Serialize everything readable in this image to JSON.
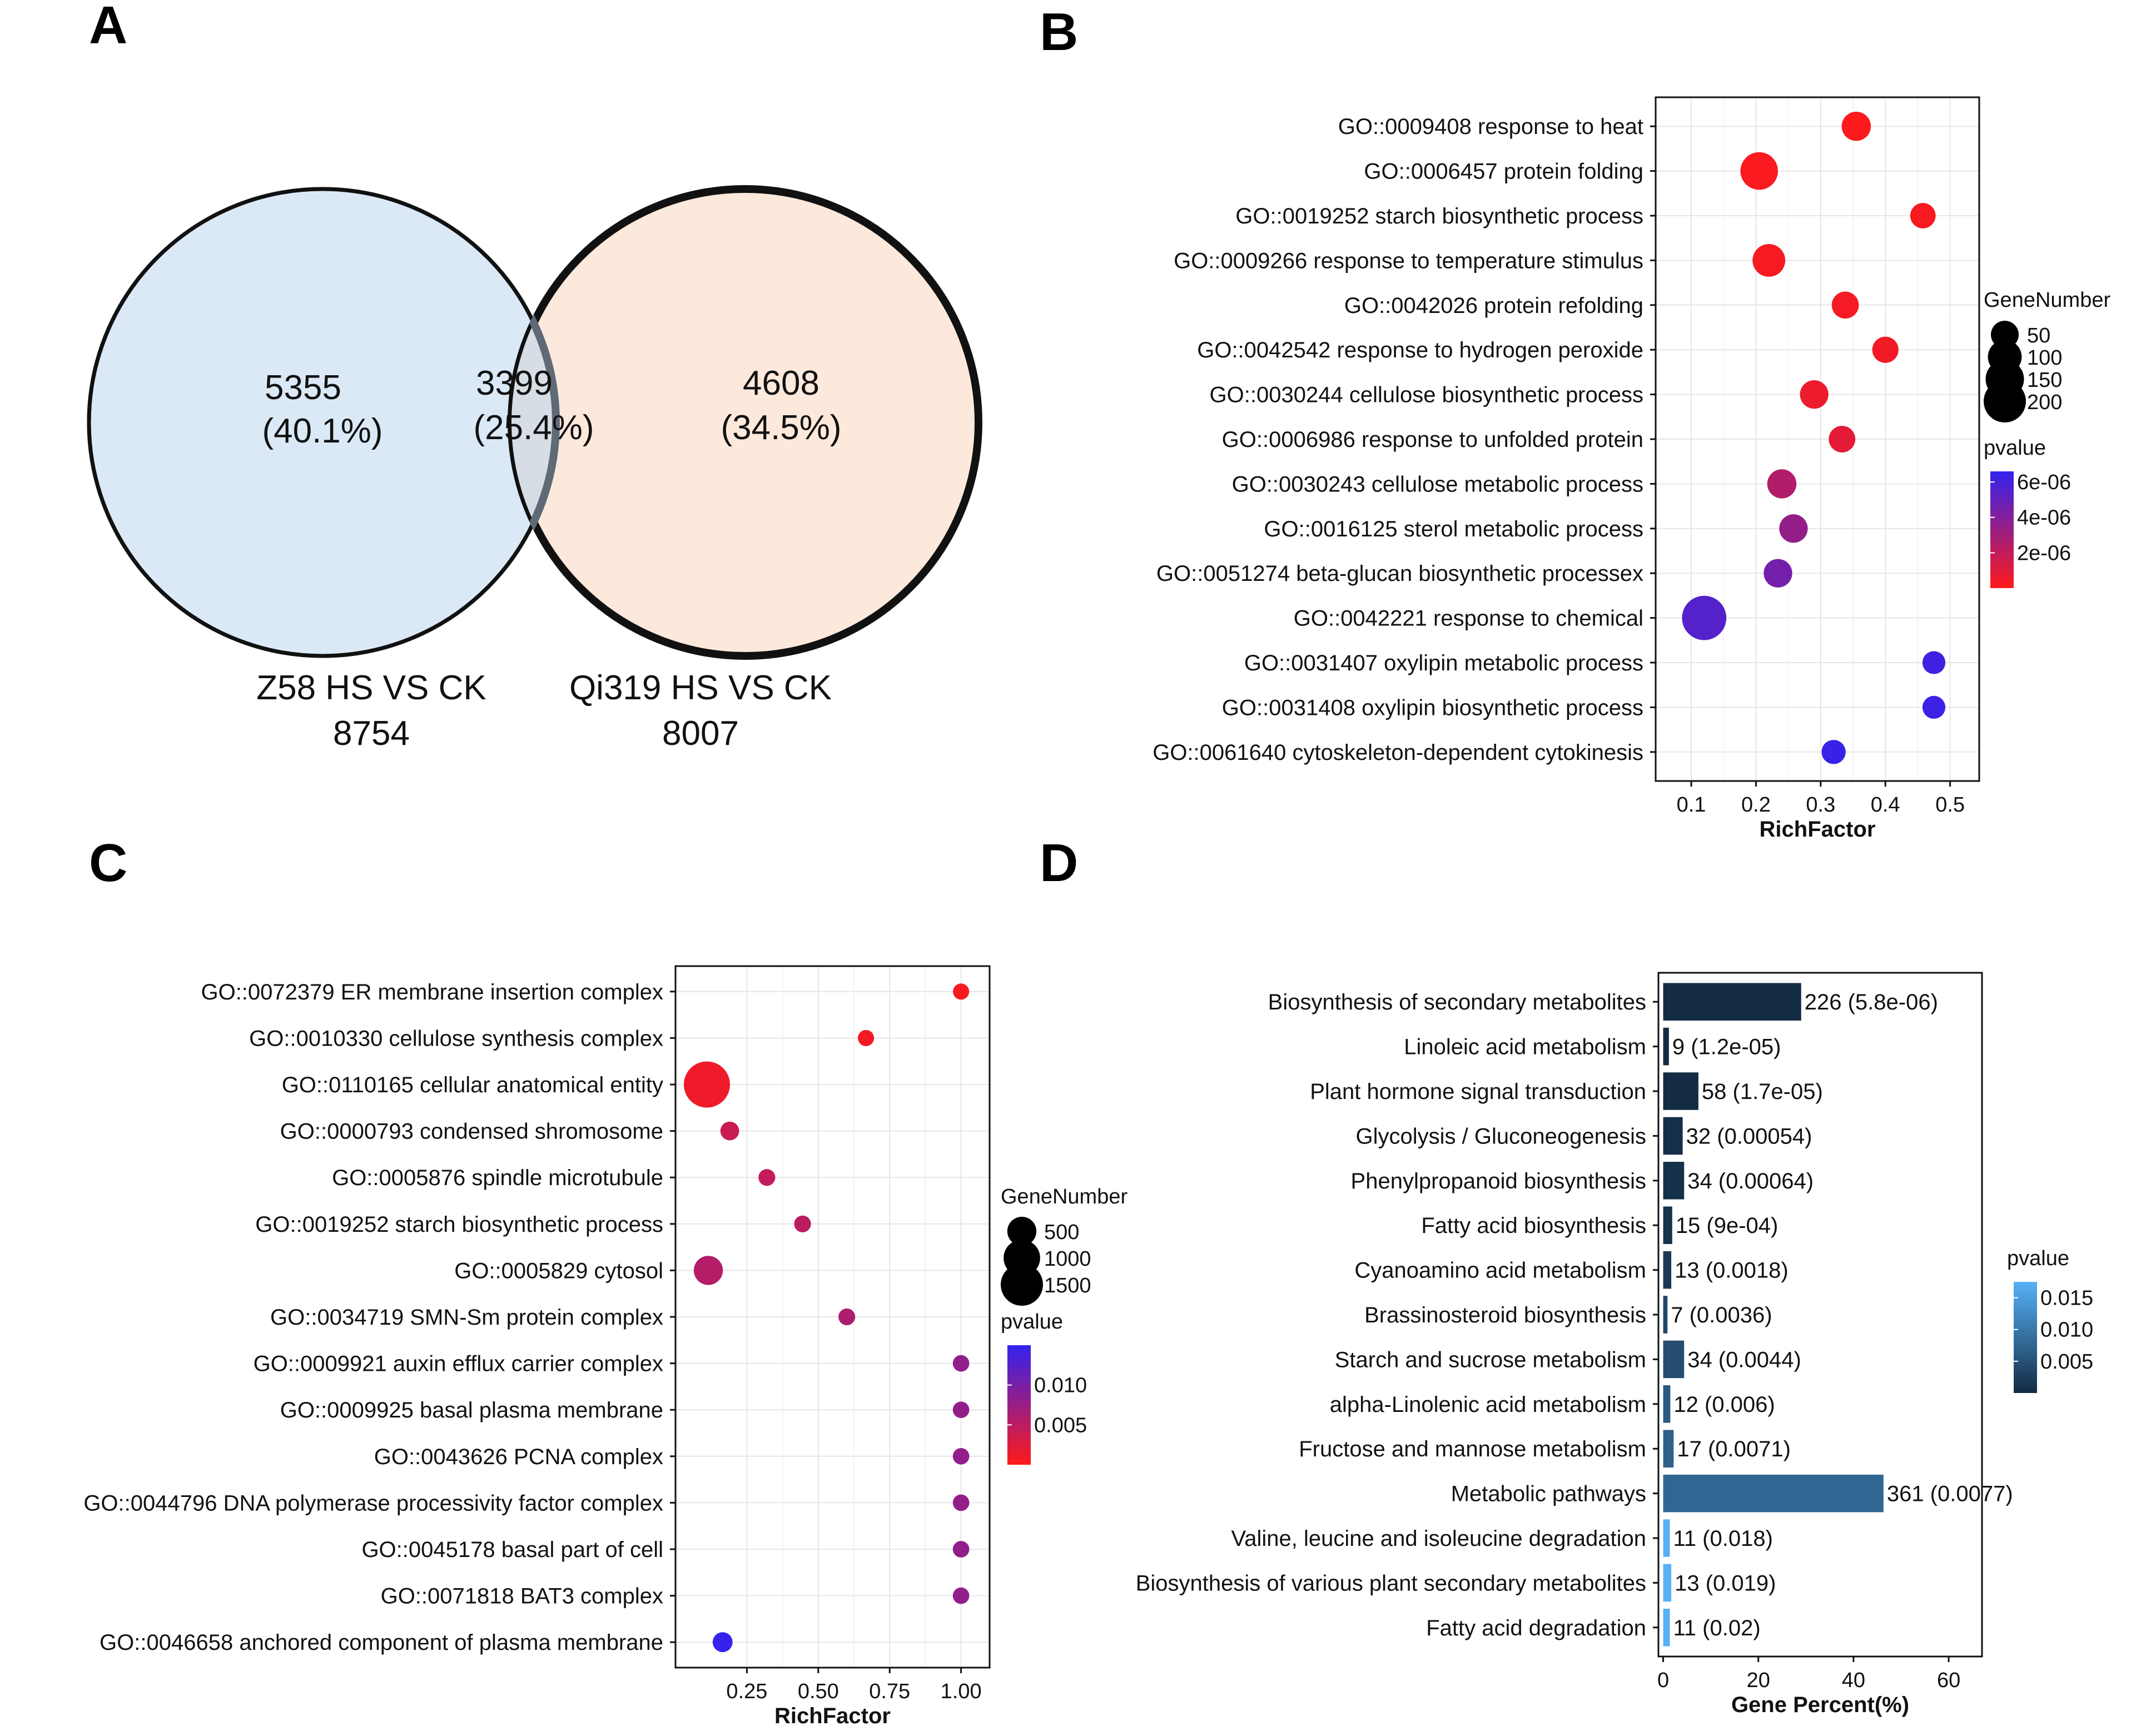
{
  "panels": {
    "a": "A",
    "b": "B",
    "c": "C",
    "d": "D"
  },
  "venn": {
    "left": {
      "count": "5355",
      "percent": "(40.1%)",
      "label": "Z58 HS VS CK",
      "total": "8754",
      "color": "#dbe9f7"
    },
    "overlap": {
      "count": "3399",
      "percent": "(25.4%)",
      "color": "#d6dde4"
    },
    "right": {
      "count": "4608",
      "percent": "(34.5%)",
      "label": "Qi319 HS VS CK",
      "total": "8007",
      "color": "#fde9dc"
    }
  },
  "chart_data": [
    {
      "id": "B",
      "type": "scatter",
      "title": "",
      "xlabel": "RichFactor",
      "xlim": [
        0.045,
        0.545
      ],
      "xticks": [
        "0.1",
        "0.2",
        "0.3",
        "0.4",
        "0.5"
      ],
      "xtick_values": [
        0.1,
        0.2,
        0.3,
        0.4,
        0.5
      ],
      "categories": [
        "GO::0009408 response to heat",
        "GO::0006457 protein folding",
        "GO::0019252 starch biosynthetic process",
        "GO::0009266 response to temperature stimulus",
        "GO::0042026 protein refolding",
        "GO::0042542 response to hydrogen peroxide",
        "GO::0030244 cellulose biosynthetic process",
        "GO::0006986 response to unfolded protein",
        "GO::0030243 cellulose metabolic process",
        "GO::0016125 sterol metabolic process",
        "GO::0051274 beta-glucan biosynthetic processex",
        "GO::0042221 response to chemical",
        "GO::0031407 oxylipin metabolic process",
        "GO::0031408 oxylipin biosynthetic process",
        "GO::0061640 cytoskeleton-dependent cytokinesis"
      ],
      "richfactor": [
        0.355,
        0.205,
        0.458,
        0.22,
        0.338,
        0.4,
        0.29,
        0.333,
        0.24,
        0.258,
        0.234,
        0.12,
        0.475,
        0.475,
        0.32
      ],
      "gene_number": [
        60,
        140,
        35,
        90,
        45,
        40,
        55,
        42,
        60,
        55,
        55,
        230,
        22,
        22,
        28
      ],
      "pvalue": [
        1e-07,
        1.5e-07,
        2e-07,
        2.5e-07,
        3e-07,
        4e-07,
        6e-07,
        9e-07,
        2.5e-06,
        3.5e-06,
        4.5e-06,
        5.5e-06,
        6.2e-06,
        6.3e-06,
        6.4e-06
      ],
      "size_legend": {
        "title": "GeneNumber",
        "values": [
          50,
          100,
          150,
          200
        ],
        "labels": [
          "50",
          "100",
          "150",
          "200"
        ]
      },
      "color_legend": {
        "title": "pvalue",
        "range": [
          0,
          6.6e-06
        ],
        "labels": [
          "6e-06",
          "4e-06",
          "2e-06"
        ],
        "label_values": [
          6e-06,
          4e-06,
          2e-06
        ],
        "low_color": "#ff1a1a",
        "high_color": "#3322ee"
      }
    },
    {
      "id": "C",
      "type": "scatter",
      "title": "",
      "xlabel": "RichFactor",
      "xlim": [
        0.0,
        1.1
      ],
      "xticks": [
        "0.25",
        "0.50",
        "0.75",
        "1.00"
      ],
      "xtick_values": [
        0.25,
        0.5,
        0.75,
        1.0
      ],
      "categories": [
        "GO::0072379 ER membrane insertion complex",
        "GO::0010330 cellulose synthesis complex",
        "GO::0110165 cellular anatomical entity",
        "GO::0000793 condensed shromosome",
        "GO::0005876 spindle microtubule",
        "GO::0019252 starch biosynthetic process",
        "GO::0005829 cytosol",
        "GO::0034719 SMN-Sm protein complex",
        "GO::0009921 auxin efflux carrier complex",
        "GO::0009925 basal plasma membrane",
        "GO::0043626 PCNA complex",
        "GO::0044796 DNA polymerase processivity factor complex",
        "GO::0045178 basal part of cell",
        "GO::0071818 BAT3 complex",
        "GO::0046658 anchored component of plasma membrane"
      ],
      "richfactor": [
        1.0,
        0.667,
        0.11,
        0.19,
        0.32,
        0.445,
        0.115,
        0.6,
        1.0,
        1.0,
        1.0,
        1.0,
        1.0,
        1.0,
        0.165
      ],
      "gene_number": [
        40,
        40,
        1900,
        90,
        50,
        50,
        500,
        50,
        45,
        45,
        45,
        45,
        45,
        45,
        120
      ],
      "pvalue": [
        0.0005,
        0.0008,
        0.0012,
        0.004,
        0.0045,
        0.005,
        0.0055,
        0.006,
        0.008,
        0.008,
        0.008,
        0.008,
        0.008,
        0.008,
        0.0148
      ],
      "size_legend": {
        "title": "GeneNumber",
        "values": [
          500,
          1000,
          1500
        ],
        "labels": [
          "500",
          "1000",
          "1500"
        ]
      },
      "color_legend": {
        "title": "pvalue",
        "range": [
          0,
          0.015
        ],
        "labels": [
          "0.010",
          "0.005"
        ],
        "label_values": [
          0.01,
          0.005
        ],
        "low_color": "#ff1a1a",
        "high_color": "#3322ee"
      }
    },
    {
      "id": "D",
      "type": "bar",
      "orientation": "horizontal",
      "title": "",
      "xlabel": "Gene Percent(%)",
      "xlim": [
        -1,
        67
      ],
      "xticks": [
        "0",
        "20",
        "40",
        "60"
      ],
      "xtick_values": [
        0,
        20,
        40,
        60
      ],
      "categories": [
        "Biosynthesis of secondary metabolites",
        "Linoleic acid metabolism",
        "Plant hormone signal transduction",
        "Glycolysis / Gluconeogenesis",
        "Phenylpropanoid biosynthesis",
        "Fatty acid biosynthesis",
        "Cyanoamino acid metabolism",
        "Brassinosteroid biosynthesis",
        "Starch and sucrose metabolism",
        "alpha-Linolenic acid metabolism",
        "Fructose and mannose metabolism",
        "Metabolic pathways",
        "Valine, leucine and isoleucine degradation",
        "Biosynthesis of various plant secondary metabolites",
        "Fatty acid degradation"
      ],
      "percent": [
        29.0,
        1.2,
        7.4,
        4.1,
        4.4,
        1.9,
        1.7,
        0.9,
        4.4,
        1.5,
        2.2,
        46.3,
        1.4,
        1.7,
        1.4
      ],
      "bar_labels": [
        "226 (5.8e-06)",
        "9 (1.2e-05)",
        "58 (1.7e-05)",
        "32 (0.00054)",
        "34 (0.00064)",
        "15 (9e-04)",
        "13 (0.0018)",
        "7 (0.0036)",
        "34 (0.0044)",
        "12 (0.006)",
        "17 (0.0071)",
        "361 (0.0077)",
        "11 (0.018)",
        "13 (0.019)",
        "11 (0.02)"
      ],
      "pvalue": [
        5.8e-06,
        1.2e-05,
        1.7e-05,
        0.00054,
        0.00064,
        0.0009,
        0.0018,
        0.0036,
        0.0044,
        0.006,
        0.0071,
        0.0077,
        0.018,
        0.019,
        0.02
      ],
      "color_legend": {
        "title": "pvalue",
        "range": [
          0.0,
          0.0175
        ],
        "labels": [
          "0.015",
          "0.010",
          "0.005"
        ],
        "label_values": [
          0.015,
          0.01,
          0.005
        ],
        "low_color": "#132b43",
        "high_color": "#56b1f7"
      }
    }
  ]
}
